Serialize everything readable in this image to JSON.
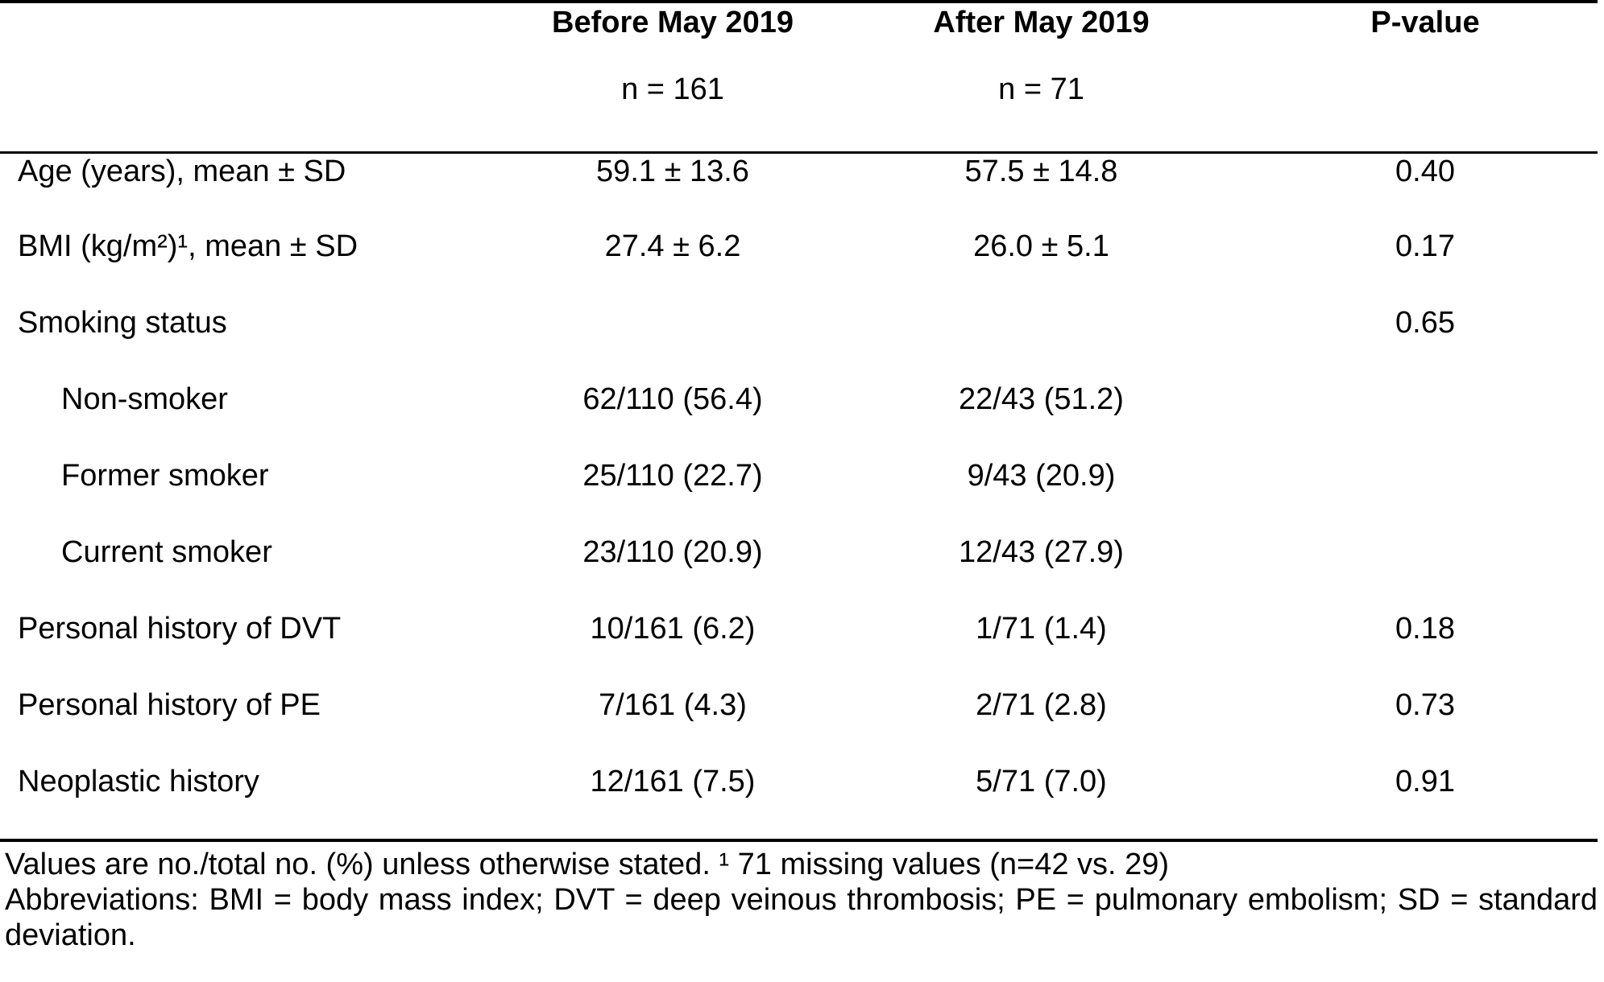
{
  "page": {
    "background": "#ffffff",
    "text_color": "#000000",
    "rule_color": "#000000"
  },
  "table": {
    "header": {
      "stub": "",
      "before_title": "Before May 2019",
      "before_n": "n = 161",
      "after_title": "After May 2019",
      "after_n": "n = 71",
      "pvalue_title": "P-value"
    },
    "rows": [
      {
        "label": "Age (years), mean ± SD",
        "indent": false,
        "before": "59.1 ± 13.6",
        "after": "57.5 ± 14.8",
        "p": "0.40"
      },
      {
        "label": "BMI (kg/m²)¹, mean ± SD",
        "indent": false,
        "before": "27.4 ± 6.2",
        "after": "26.0 ± 5.1",
        "p": "0.17"
      },
      {
        "label": "Smoking status",
        "indent": false,
        "before": "",
        "after": "",
        "p": "0.65"
      },
      {
        "label": "Non-smoker",
        "indent": true,
        "before": "62/110 (56.4)",
        "after": "22/43 (51.2)",
        "p": ""
      },
      {
        "label": "Former smoker",
        "indent": true,
        "before": "25/110 (22.7)",
        "after": "9/43 (20.9)",
        "p": ""
      },
      {
        "label": "Current smoker",
        "indent": true,
        "before": "23/110 (20.9)",
        "after": "12/43 (27.9)",
        "p": ""
      },
      {
        "label": "Personal history of DVT",
        "indent": false,
        "before": "10/161 (6.2)",
        "after": "1/71 (1.4)",
        "p": "0.18"
      },
      {
        "label": "Personal history of PE",
        "indent": false,
        "before": "7/161 (4.3)",
        "after": "2/71 (2.8)",
        "p": "0.73"
      },
      {
        "label": "Neoplastic history",
        "indent": false,
        "before": "12/161 (7.5)",
        "after": "5/71 (7.0)",
        "p": "0.91"
      }
    ]
  },
  "footnotes": {
    "line1": "Values are no./total no. (%) unless otherwise stated. ¹ 71 missing values (n=42 vs. 29)",
    "line2": "Abbreviations: BMI = body mass index; DVT = deep veinous thrombosis; PE = pulmonary embolism; SD = standard",
    "line3": "deviation."
  }
}
